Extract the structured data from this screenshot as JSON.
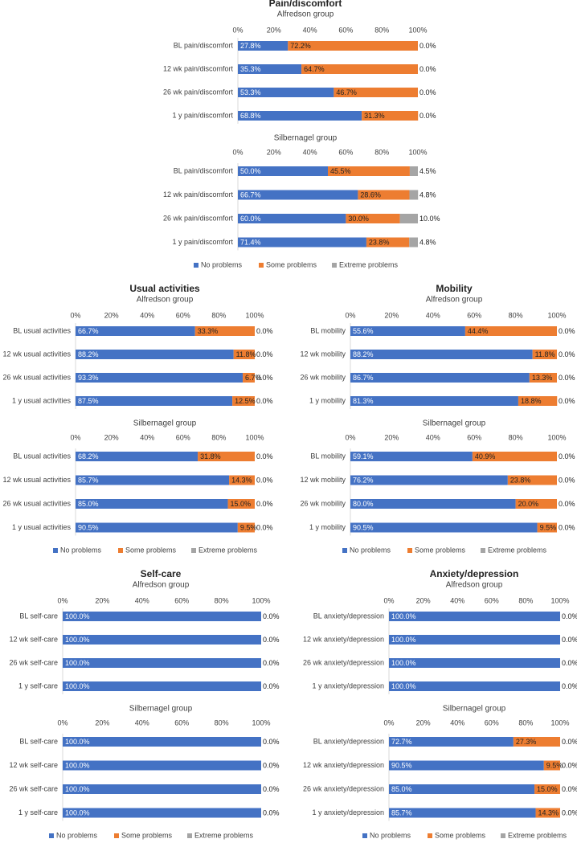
{
  "chart_data": [
    {
      "type": "bar",
      "orientation": "horizontal",
      "stacked": true,
      "title": "Pain/discomfort",
      "legend": "bottom",
      "xlim": [
        0,
        100
      ],
      "xticks": [
        {
          "value": 0,
          "label": "0%"
        },
        {
          "value": 20,
          "label": "20%"
        },
        {
          "value": 40,
          "label": "40%"
        },
        {
          "value": 60,
          "label": "60%"
        },
        {
          "value": 80,
          "label": "80%"
        },
        {
          "value": 100,
          "label": "100%"
        }
      ],
      "series": [
        {
          "name": "No problems",
          "color": "#4472c4"
        },
        {
          "name": "Some problems",
          "color": "#ed7d31"
        },
        {
          "name": "Extreme problems",
          "color": "#a5a5a5"
        }
      ],
      "groups": [
        {
          "subtitle": "Alfredson group",
          "categories": [
            "BL pain/discomfort",
            "12 wk pain/discomfort",
            "26 wk pain/discomfort",
            "1 y pain/discomfort"
          ],
          "series": [
            {
              "values": [
                27.8,
                35.3,
                53.3,
                68.8
              ],
              "value_labels": [
                "27.8%",
                "35.3%",
                "53.3%",
                "68.8%"
              ]
            },
            {
              "values": [
                72.2,
                64.7,
                46.7,
                31.3
              ],
              "value_labels": [
                "72.2%",
                "64.7%",
                "46.7%",
                "31.3%"
              ]
            },
            {
              "values": [
                0,
                0,
                0,
                0
              ],
              "value_labels": [
                "0.0%",
                "0.0%",
                "0.0%",
                "0.0%"
              ]
            }
          ]
        },
        {
          "subtitle": "Silbernagel group",
          "categories": [
            "BL pain/discomfort",
            "12 wk pain/discomfort",
            "26 wk pain/discomfort",
            "1 y pain/discomfort"
          ],
          "series": [
            {
              "values": [
                50,
                66.7,
                60,
                71.4
              ],
              "value_labels": [
                "50.0%",
                "66.7%",
                "60.0%",
                "71.4%"
              ]
            },
            {
              "values": [
                45.5,
                28.6,
                30,
                23.8
              ],
              "value_labels": [
                "45.5%",
                "28.6%",
                "30.0%",
                "23.8%"
              ]
            },
            {
              "values": [
                4.5,
                4.8,
                10,
                4.8
              ],
              "value_labels": [
                "4.5%",
                "4.8%",
                "10.0%",
                "4.8%"
              ]
            }
          ]
        }
      ]
    },
    {
      "type": "bar",
      "orientation": "horizontal",
      "stacked": true,
      "title": "Usual activities",
      "legend": "bottom",
      "xlim": [
        0,
        100
      ],
      "xticks": [
        {
          "value": 0,
          "label": "0%"
        },
        {
          "value": 20,
          "label": "20%"
        },
        {
          "value": 40,
          "label": "40%"
        },
        {
          "value": 60,
          "label": "60%"
        },
        {
          "value": 80,
          "label": "80%"
        },
        {
          "value": 100,
          "label": "100%"
        }
      ],
      "series": [
        {
          "name": "No problems",
          "color": "#4472c4"
        },
        {
          "name": "Some problems",
          "color": "#ed7d31"
        },
        {
          "name": "Extreme problems",
          "color": "#a5a5a5"
        }
      ],
      "groups": [
        {
          "subtitle": "Alfredson group",
          "categories": [
            "BL usual activities",
            "12 wk usual activities",
            "26 wk usual activities",
            "1 y usual activities"
          ],
          "series": [
            {
              "values": [
                66.7,
                88.2,
                93.3,
                87.5
              ],
              "value_labels": [
                "66.7%",
                "88.2%",
                "93.3%",
                "87.5%"
              ]
            },
            {
              "values": [
                33.3,
                11.8,
                6.7,
                12.5
              ],
              "value_labels": [
                "33.3%",
                "11.8%",
                "6.7%",
                "12.5%"
              ]
            },
            {
              "values": [
                0,
                0,
                0,
                0
              ],
              "value_labels": [
                "0.0%",
                "0.0%",
                "0.0%",
                "0.0%"
              ]
            }
          ]
        },
        {
          "subtitle": "Silbernagel group",
          "categories": [
            "BL usual activities",
            "12 wk usual activities",
            "26 wk usual activities",
            "1 y usual activities"
          ],
          "series": [
            {
              "values": [
                68.2,
                85.7,
                85,
                90.5
              ],
              "value_labels": [
                "68.2%",
                "85.7%",
                "85.0%",
                "90.5%"
              ]
            },
            {
              "values": [
                31.8,
                14.3,
                15,
                9.5
              ],
              "value_labels": [
                "31.8%",
                "14.3%",
                "15.0%",
                "9.5%"
              ]
            },
            {
              "values": [
                0,
                0,
                0,
                0
              ],
              "value_labels": [
                "0.0%",
                "0.0%",
                "0.0%",
                "0.0%"
              ]
            }
          ]
        }
      ]
    },
    {
      "type": "bar",
      "orientation": "horizontal",
      "stacked": true,
      "title": "Mobility",
      "legend": "bottom",
      "xlim": [
        0,
        100
      ],
      "xticks": [
        {
          "value": 0,
          "label": "0%"
        },
        {
          "value": 20,
          "label": "20%"
        },
        {
          "value": 40,
          "label": "40%"
        },
        {
          "value": 60,
          "label": "60%"
        },
        {
          "value": 80,
          "label": "80%"
        },
        {
          "value": 100,
          "label": "100%"
        }
      ],
      "series": [
        {
          "name": "No problems",
          "color": "#4472c4"
        },
        {
          "name": "Some problems",
          "color": "#ed7d31"
        },
        {
          "name": "Extreme problems",
          "color": "#a5a5a5"
        }
      ],
      "groups": [
        {
          "subtitle": "Alfredson group",
          "categories": [
            "BL mobility",
            "12 wk mobility",
            "26 wk mobility",
            "1 y mobility"
          ],
          "series": [
            {
              "values": [
                55.6,
                88.2,
                86.7,
                81.3
              ],
              "value_labels": [
                "55.6%",
                "88.2%",
                "86.7%",
                "81.3%"
              ]
            },
            {
              "values": [
                44.4,
                11.8,
                13.3,
                18.8
              ],
              "value_labels": [
                "44.4%",
                "11.8%",
                "13.3%",
                "18.8%"
              ]
            },
            {
              "values": [
                0,
                0,
                0,
                0
              ],
              "value_labels": [
                "0.0%",
                "0.0%",
                "0.0%",
                "0.0%"
              ]
            }
          ]
        },
        {
          "subtitle": "Silbernagel group",
          "categories": [
            "BL mobility",
            "12 wk mobility",
            "26 wk mobility",
            "1 y mobility"
          ],
          "series": [
            {
              "values": [
                59.1,
                76.2,
                80,
                90.5
              ],
              "value_labels": [
                "59.1%",
                "76.2%",
                "80.0%",
                "90.5%"
              ]
            },
            {
              "values": [
                40.9,
                23.8,
                20,
                9.5
              ],
              "value_labels": [
                "40.9%",
                "23.8%",
                "20.0%",
                "9.5%"
              ]
            },
            {
              "values": [
                0,
                0,
                0,
                0
              ],
              "value_labels": [
                "0.0%",
                "0.0%",
                "0.0%",
                "0.0%"
              ]
            }
          ]
        }
      ]
    },
    {
      "type": "bar",
      "orientation": "horizontal",
      "stacked": true,
      "title": "Self-care",
      "legend": "bottom",
      "xlim": [
        0,
        100
      ],
      "xticks": [
        {
          "value": 0,
          "label": "0%"
        },
        {
          "value": 20,
          "label": "20%"
        },
        {
          "value": 40,
          "label": "40%"
        },
        {
          "value": 60,
          "label": "60%"
        },
        {
          "value": 80,
          "label": "80%"
        },
        {
          "value": 100,
          "label": "100%"
        }
      ],
      "series": [
        {
          "name": "No problems",
          "color": "#4472c4"
        },
        {
          "name": "Some problems",
          "color": "#ed7d31"
        },
        {
          "name": "Extreme problems",
          "color": "#a5a5a5"
        }
      ],
      "groups": [
        {
          "subtitle": "Alfredson group",
          "categories": [
            "BL self-care",
            "12 wk self-care",
            "26 wk self-care",
            "1 y self-care"
          ],
          "series": [
            {
              "values": [
                100,
                100,
                100,
                100
              ],
              "value_labels": [
                "100.0%",
                "100.0%",
                "100.0%",
                "100.0%"
              ]
            },
            {
              "values": [
                0,
                0,
                0,
                0
              ],
              "value_labels": [
                null,
                null,
                null,
                null
              ]
            },
            {
              "values": [
                0,
                0,
                0,
                0
              ],
              "value_labels": [
                "0.0%",
                "0.0%",
                "0.0%",
                "0.0%"
              ]
            }
          ]
        },
        {
          "subtitle": "Silbernagel group",
          "categories": [
            "BL self-care",
            "12 wk self-care",
            "26 wk self-care",
            "1 y self-care"
          ],
          "series": [
            {
              "values": [
                100,
                100,
                100,
                100
              ],
              "value_labels": [
                "100.0%",
                "100.0%",
                "100.0%",
                "100.0%"
              ]
            },
            {
              "values": [
                0,
                0,
                0,
                0
              ],
              "value_labels": [
                null,
                null,
                null,
                null
              ]
            },
            {
              "values": [
                0,
                0,
                0,
                0
              ],
              "value_labels": [
                "0.0%",
                "0.0%",
                "0.0%",
                "0.0%"
              ]
            }
          ]
        }
      ]
    },
    {
      "type": "bar",
      "orientation": "horizontal",
      "stacked": true,
      "title": "Anxiety/depression",
      "legend": "bottom",
      "xlim": [
        0,
        100
      ],
      "xticks": [
        {
          "value": 0,
          "label": "0%"
        },
        {
          "value": 20,
          "label": "20%"
        },
        {
          "value": 40,
          "label": "40%"
        },
        {
          "value": 60,
          "label": "60%"
        },
        {
          "value": 80,
          "label": "80%"
        },
        {
          "value": 100,
          "label": "100%"
        }
      ],
      "series": [
        {
          "name": "No problems",
          "color": "#4472c4"
        },
        {
          "name": "Some problems",
          "color": "#ed7d31"
        },
        {
          "name": "Extreme problems",
          "color": "#a5a5a5"
        }
      ],
      "groups": [
        {
          "subtitle": "Alfredson group",
          "categories": [
            "BL anxiety/depression",
            "12 wk anxiety/depression",
            "26 wk anxiety/depression",
            "1 y anxiety/depression"
          ],
          "series": [
            {
              "values": [
                100,
                100,
                100,
                100
              ],
              "value_labels": [
                "100.0%",
                "100.0%",
                "100.0%",
                "100.0%"
              ]
            },
            {
              "values": [
                0,
                0,
                0,
                0
              ],
              "value_labels": [
                null,
                null,
                null,
                null
              ]
            },
            {
              "values": [
                0,
                0,
                0,
                0
              ],
              "value_labels": [
                "0.0%",
                "0.0%",
                "0.0%",
                "0.0%"
              ]
            }
          ]
        },
        {
          "subtitle": "Silbernagel group",
          "categories": [
            "BL anxiety/depression",
            "12 wk anxiety/depression",
            "26 wk anxiety/depression",
            "1 y anxiety/depression"
          ],
          "series": [
            {
              "values": [
                72.7,
                90.5,
                85,
                85.7
              ],
              "value_labels": [
                "72.7%",
                "90.5%",
                "85.0%",
                "85.7%"
              ]
            },
            {
              "values": [
                27.3,
                9.5,
                15,
                14.3
              ],
              "value_labels": [
                "27.3%",
                "9.5%",
                "15.0%",
                "14.3%"
              ]
            },
            {
              "values": [
                0,
                0,
                0,
                0
              ],
              "value_labels": [
                "0.0%",
                "0.0%",
                "0.0%",
                "0.0%"
              ]
            }
          ]
        }
      ]
    }
  ]
}
